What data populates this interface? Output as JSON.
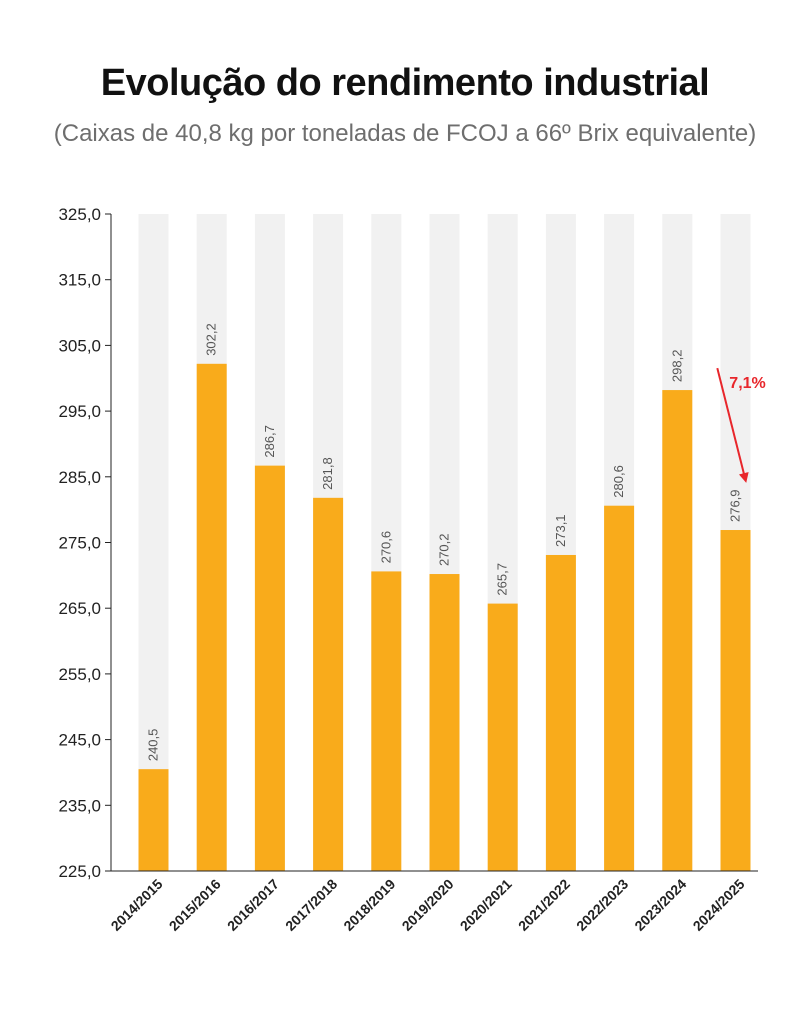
{
  "chart_data": {
    "type": "bar",
    "title": "Evolução do rendimento industrial",
    "subtitle": "(Caixas de 40,8 kg por toneladas de FCOJ a 66º Brix equivalente)",
    "categories": [
      "2014/2015",
      "2015/2016",
      "2016/2017",
      "2017/2018",
      "2018/2019",
      "2019/2020",
      "2020/2021",
      "2021/2022",
      "2022/2023",
      "2023/2024",
      "2024/2025"
    ],
    "values": [
      240.5,
      302.2,
      286.7,
      281.8,
      270.6,
      270.2,
      265.7,
      273.1,
      280.6,
      298.2,
      276.9
    ],
    "value_labels": [
      "240,5",
      "302,2",
      "286,7",
      "281,8",
      "270,6",
      "270,2",
      "265,7",
      "273,1",
      "280,6",
      "298,2",
      "276,9"
    ],
    "ylim": [
      225,
      325
    ],
    "yticks": [
      225,
      235,
      245,
      255,
      265,
      275,
      285,
      295,
      305,
      315,
      325
    ],
    "ytick_labels": [
      "225,0",
      "235,0",
      "245,0",
      "255,0",
      "265,0",
      "275,0",
      "285,0",
      "295,0",
      "305,0",
      "315,0",
      "325,0"
    ],
    "annotation": {
      "text": "7,1%",
      "from_category": "2023/2024",
      "to_category": "2024/2025"
    },
    "colors": {
      "bar": "#f9ab1b",
      "track": "#f1f1f1",
      "annotation": "#e8262b",
      "axis": "#222222"
    }
  }
}
